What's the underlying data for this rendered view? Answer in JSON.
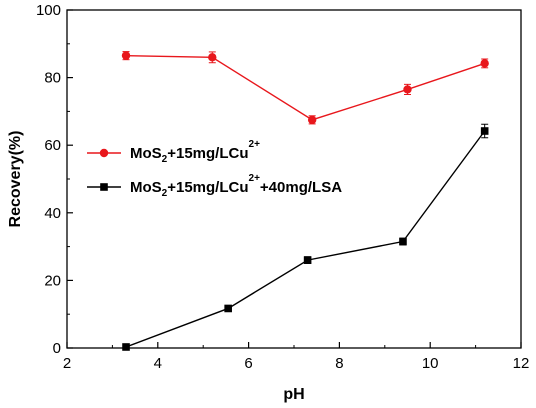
{
  "chart_data": {
    "type": "line",
    "xlabel": "pH",
    "ylabel": "Recovery(%)",
    "xlim": [
      2,
      12
    ],
    "ylim": [
      0,
      100
    ],
    "xticks": [
      2,
      4,
      6,
      8,
      10,
      12
    ],
    "yticks": [
      0,
      20,
      40,
      60,
      80,
      100
    ],
    "grid": false,
    "legend_position": "center-left",
    "series": [
      {
        "name": "MoS2+15mg/LCu2+",
        "legend_parts": [
          {
            "text": "MoS",
            "style": "normal"
          },
          {
            "text": "2",
            "style": "sub"
          },
          {
            "text": "+15mg/LCu",
            "style": "normal"
          },
          {
            "text": "2+",
            "style": "sup"
          }
        ],
        "color": "#e8171c",
        "marker": "circle",
        "x": [
          3.3,
          5.2,
          7.4,
          9.5,
          11.2
        ],
        "y": [
          86.5,
          86,
          67.5,
          76.5,
          84.2
        ],
        "err": [
          1.2,
          1.6,
          1.2,
          1.5,
          1.3
        ]
      },
      {
        "name": "MoS2+15mg/LCu2++40mg/LSA",
        "legend_parts": [
          {
            "text": "MoS",
            "style": "normal"
          },
          {
            "text": "2",
            "style": "sub"
          },
          {
            "text": "+15mg/LCu",
            "style": "normal"
          },
          {
            "text": "2+",
            "style": "sup"
          },
          {
            "text": "+40mg/LSA",
            "style": "normal"
          }
        ],
        "color": "#000000",
        "marker": "square",
        "x": [
          3.3,
          5.55,
          7.3,
          9.4,
          11.2
        ],
        "y": [
          0.3,
          11.7,
          26,
          31.5,
          64.2
        ],
        "err": [
          0.5,
          0.8,
          1,
          1,
          2
        ]
      }
    ]
  }
}
